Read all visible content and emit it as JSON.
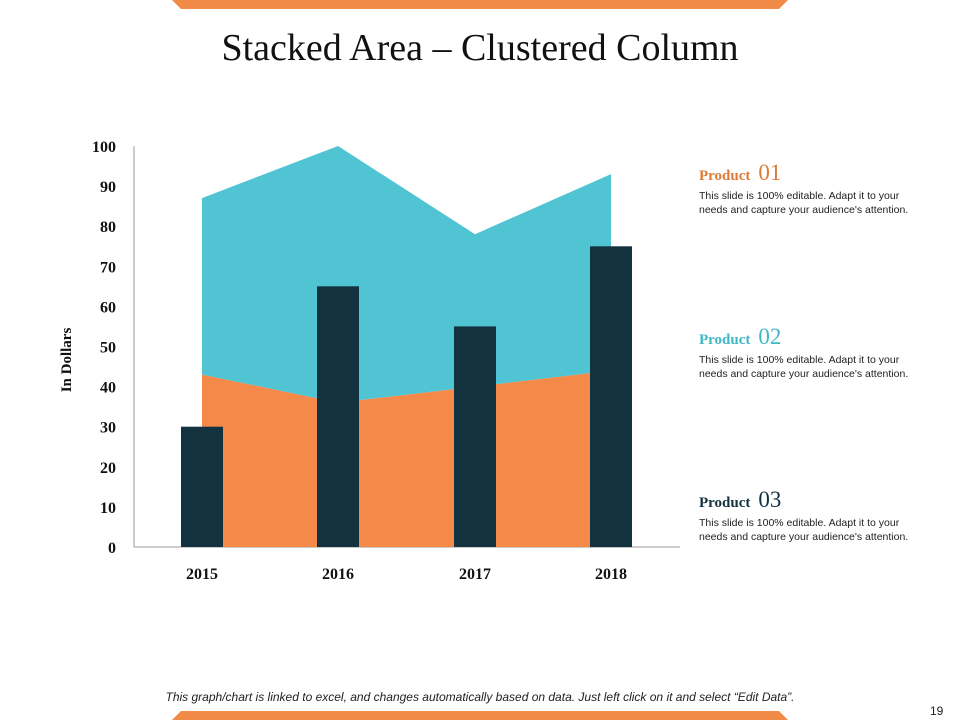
{
  "slide": {
    "title": "Stacked Area – Clustered Column",
    "footer": "This graph/chart is linked to excel, and changes automatically based on data. Just left click on it and select “Edit Data”.",
    "page_number": "19"
  },
  "colors": {
    "accent_orange": "#f08a46",
    "teal": "#4fc4d3",
    "navy": "#133240"
  },
  "legend": [
    {
      "word": "Product",
      "number": "01",
      "color": "#e07a35",
      "description": "This slide is 100% editable. Adapt it to your needs and capture your audience's attention."
    },
    {
      "word": "Product",
      "number": "02",
      "color": "#40b8c8",
      "description": "This slide is 100% editable. Adapt it to your needs and capture your audience's attention."
    },
    {
      "word": "Product",
      "number": "03",
      "color": "#133240",
      "description": "This slide is 100% editable. Adapt it to your needs and capture your audience's attention."
    }
  ],
  "chart_data": {
    "type": "bar",
    "title": "",
    "xlabel": "",
    "ylabel": "In Dollars",
    "ylim": [
      0,
      100
    ],
    "yticks": [
      0,
      10,
      20,
      30,
      40,
      50,
      60,
      70,
      80,
      90,
      100
    ],
    "categories": [
      "2015",
      "2016",
      "2017",
      "2018"
    ],
    "series": [
      {
        "name": "Product 01",
        "kind": "area",
        "color": "#f4894a",
        "values": [
          43,
          36,
          40,
          44
        ]
      },
      {
        "name": "Product 02",
        "kind": "area",
        "color": "#50c4d3",
        "values": [
          44,
          64,
          38,
          49
        ]
      },
      {
        "name": "Product 03",
        "kind": "column",
        "color": "#133240",
        "values": [
          30,
          65,
          55,
          75
        ]
      }
    ]
  }
}
